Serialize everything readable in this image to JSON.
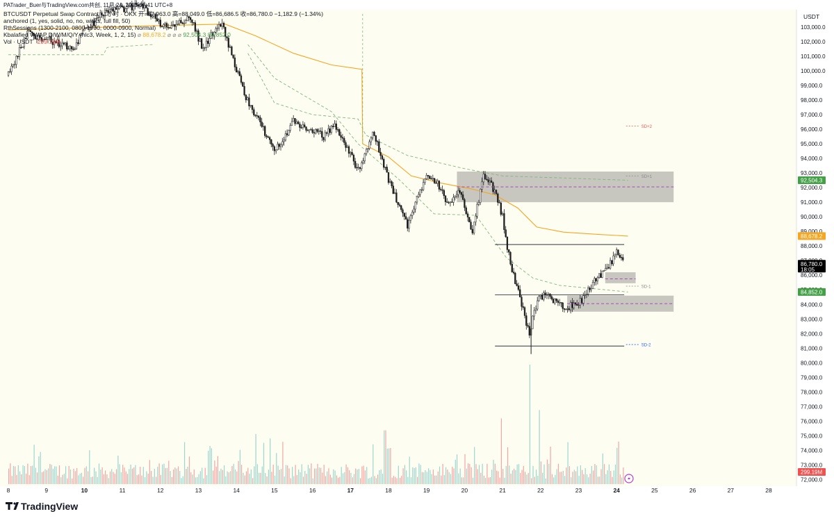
{
  "header": {
    "title": "PATrader_Buer与TradingView.com共创, 11月 24, 2025 07:41 UTC+8",
    "symbol_line": "BTCUSDT Perpetual Swap Contract · 1小时 · OKX  开=87,963.0  高=88,049.0  低=86,686.5  收=86,780.0  −1,182.9 (−1.34%)",
    "indicators": [
      "anchored (1, yes, solid, no, no, wicks, full fill, 50)",
      "RthSessions (1300-2100, 0800-1700, 0000-0900, Normal)",
      "Kbalafied VWAP D/W/M/Q/Y (hlc3, Week, 1, 2, 15)",
      "Vol · USDT"
    ],
    "vwap_values": {
      "orange": "88,678.2",
      "green1": "92,504.3",
      "green2": "84,852.0"
    },
    "vol_value": "299.19M"
  },
  "colors": {
    "background": "#fefdf1",
    "up": "#26a69a",
    "down": "#ef5350",
    "candle": "#1f1f1f",
    "vwap": "#f5a623",
    "band": "#7cb87a",
    "zone": "#bdbcb6",
    "resistance_line": "#a33bb5"
  },
  "chart_data": {
    "type": "candlestick",
    "title": "BTCUSDT Perpetual Swap Contract · 1小时 · OKX",
    "ylabel": "USDT",
    "ylim": [
      72000,
      103500
    ],
    "y_ticks": [
      72000,
      73000,
      74000,
      75000,
      76000,
      77000,
      78000,
      79000,
      80000,
      81000,
      82000,
      83000,
      84000,
      85000,
      86000,
      87000,
      88000,
      89000,
      90000,
      91000,
      92000,
      93000,
      94000,
      95000,
      96000,
      97000,
      98000,
      99000,
      100000,
      101000,
      102000,
      103000
    ],
    "x_ticks": [
      "8",
      "9",
      "10",
      "11",
      "12",
      "13",
      "14",
      "15",
      "16",
      "17",
      "18",
      "19",
      "20",
      "21",
      "22",
      "23",
      "24",
      "25",
      "26",
      "27",
      "28"
    ],
    "x_bold": [
      "10",
      "17",
      "24"
    ],
    "price_path": [
      {
        "day": 8.0,
        "price": 99700
      },
      {
        "day": 8.5,
        "price": 102600
      },
      {
        "day": 9.2,
        "price": 102000
      },
      {
        "day": 9.7,
        "price": 101500
      },
      {
        "day": 10.0,
        "price": 102700
      },
      {
        "day": 10.5,
        "price": 104000
      },
      {
        "day": 11.5,
        "price": 104500
      },
      {
        "day": 12.1,
        "price": 103000
      },
      {
        "day": 12.8,
        "price": 103600
      },
      {
        "day": 13.1,
        "price": 101600
      },
      {
        "day": 13.6,
        "price": 103300
      },
      {
        "day": 14.2,
        "price": 98500
      },
      {
        "day": 14.6,
        "price": 96500
      },
      {
        "day": 15.0,
        "price": 94500
      },
      {
        "day": 15.5,
        "price": 96500
      },
      {
        "day": 16.3,
        "price": 95500
      },
      {
        "day": 16.6,
        "price": 96300
      },
      {
        "day": 17.2,
        "price": 93200
      },
      {
        "day": 17.6,
        "price": 95800
      },
      {
        "day": 18.0,
        "price": 92500
      },
      {
        "day": 18.5,
        "price": 89400
      },
      {
        "day": 19.0,
        "price": 93000
      },
      {
        "day": 19.3,
        "price": 92300
      },
      {
        "day": 19.6,
        "price": 90700
      },
      {
        "day": 19.9,
        "price": 91800
      },
      {
        "day": 20.2,
        "price": 88900
      },
      {
        "day": 20.5,
        "price": 92800
      },
      {
        "day": 20.8,
        "price": 91800
      },
      {
        "day": 21.0,
        "price": 90000
      },
      {
        "day": 21.2,
        "price": 86800
      },
      {
        "day": 21.4,
        "price": 85000
      },
      {
        "day": 21.7,
        "price": 82000
      },
      {
        "day": 21.9,
        "price": 84200
      },
      {
        "day": 22.2,
        "price": 84800
      },
      {
        "day": 22.4,
        "price": 84100
      },
      {
        "day": 22.7,
        "price": 83800
      },
      {
        "day": 23.1,
        "price": 84300
      },
      {
        "day": 23.4,
        "price": 85600
      },
      {
        "day": 23.7,
        "price": 86200
      },
      {
        "day": 24.0,
        "price": 87500
      },
      {
        "day": 24.2,
        "price": 86780
      }
    ],
    "vwap_line": [
      {
        "day": 8.0,
        "price": 102800
      },
      {
        "day": 12.0,
        "price": 103100
      },
      {
        "day": 13.7,
        "price": 103200
      },
      {
        "day": 14.5,
        "price": 102400
      },
      {
        "day": 15.5,
        "price": 101200
      },
      {
        "day": 16.5,
        "price": 100400
      },
      {
        "day": 17.3,
        "price": 100100
      },
      {
        "day": 17.32,
        "price": 95000
      },
      {
        "day": 18.0,
        "price": 94100
      },
      {
        "day": 18.6,
        "price": 92800
      },
      {
        "day": 19.4,
        "price": 92300
      },
      {
        "day": 20.2,
        "price": 91900
      },
      {
        "day": 20.8,
        "price": 91500
      },
      {
        "day": 21.4,
        "price": 90600
      },
      {
        "day": 21.9,
        "price": 89300
      },
      {
        "day": 22.6,
        "price": 88950
      },
      {
        "day": 23.5,
        "price": 88800
      },
      {
        "day": 24.3,
        "price": 88678
      }
    ],
    "vwap_upper_band": [
      {
        "day": 14.3,
        "price": 101200
      },
      {
        "day": 15.0,
        "price": 97800
      },
      {
        "day": 16.0,
        "price": 97000
      },
      {
        "day": 17.2,
        "price": 96700
      },
      {
        "day": 17.4,
        "price": 95600
      },
      {
        "day": 18.5,
        "price": 94200
      },
      {
        "day": 20.0,
        "price": 93300
      },
      {
        "day": 21.0,
        "price": 92800
      },
      {
        "day": 24.3,
        "price": 92504
      }
    ],
    "vwap_lower_band": [
      {
        "day": 14.3,
        "price": 101800
      },
      {
        "day": 15.0,
        "price": 99500
      },
      {
        "day": 16.5,
        "price": 97200
      },
      {
        "day": 17.2,
        "price": 95000
      },
      {
        "day": 18.3,
        "price": 92500
      },
      {
        "day": 19.2,
        "price": 90200
      },
      {
        "day": 20.3,
        "price": 90100
      },
      {
        "day": 21.1,
        "price": 87200
      },
      {
        "day": 21.8,
        "price": 85800
      },
      {
        "day": 22.5,
        "price": 85300
      },
      {
        "day": 24.3,
        "price": 84852
      }
    ],
    "zones": [
      {
        "x_start": 19.8,
        "x_end": 25.5,
        "y_low": 91000,
        "y_high": 93100
      },
      {
        "x_start": 23.7,
        "x_end": 24.5,
        "y_low": 85450,
        "y_high": 86200
      },
      {
        "x_start": 22.7,
        "x_end": 25.5,
        "y_low": 83500,
        "y_high": 84600
      }
    ],
    "horizontal_lines": [
      {
        "x_start": 20.8,
        "x_end": 24.2,
        "price": 88100,
        "style": "solid"
      },
      {
        "x_start": 20.8,
        "x_end": 24.2,
        "price": 84650,
        "style": "solid"
      },
      {
        "x_start": 20.8,
        "x_end": 24.2,
        "price": 81150,
        "style": "solid"
      },
      {
        "x_start": 19.8,
        "x_end": 25.5,
        "price": 92050,
        "style": "dashed"
      },
      {
        "x_start": 22.7,
        "x_end": 25.5,
        "price": 84050,
        "style": "dashed"
      },
      {
        "x_start": 23.7,
        "x_end": 24.5,
        "price": 85750,
        "style": "dashed"
      }
    ],
    "sd_labels": [
      {
        "text": "SD+2",
        "day": 24.65,
        "price": 96220
      },
      {
        "text": "SD+1",
        "day": 24.65,
        "price": 92800
      },
      {
        "text": "SD-1",
        "day": 24.65,
        "price": 85250
      },
      {
        "text": "SD-2",
        "day": 24.65,
        "price": 81250
      }
    ],
    "price_labels": [
      {
        "text": "92,504.3",
        "price": 92504,
        "color": "#43a047"
      },
      {
        "text": "88,678.2",
        "price": 88678,
        "color": "#f5a623"
      },
      {
        "text": "86,780.0",
        "price": 86780,
        "color": "#000000",
        "sub": "18:05"
      },
      {
        "text": "84,852.0",
        "price": 84852,
        "color": "#43a047"
      }
    ],
    "volume": {
      "unit": "USDT",
      "last_value": "299.19M",
      "spikes": [
        {
          "day": 17.9,
          "value": 0.45
        },
        {
          "day": 20.95,
          "value": 0.55
        },
        {
          "day": 21.7,
          "value": 1.0
        },
        {
          "day": 21.95,
          "value": 0.62
        },
        {
          "day": 14.5,
          "value": 0.42
        },
        {
          "day": 13.3,
          "value": 0.32
        }
      ]
    }
  },
  "branding": {
    "logo_text": "TradingView",
    "currency": "USDT"
  }
}
